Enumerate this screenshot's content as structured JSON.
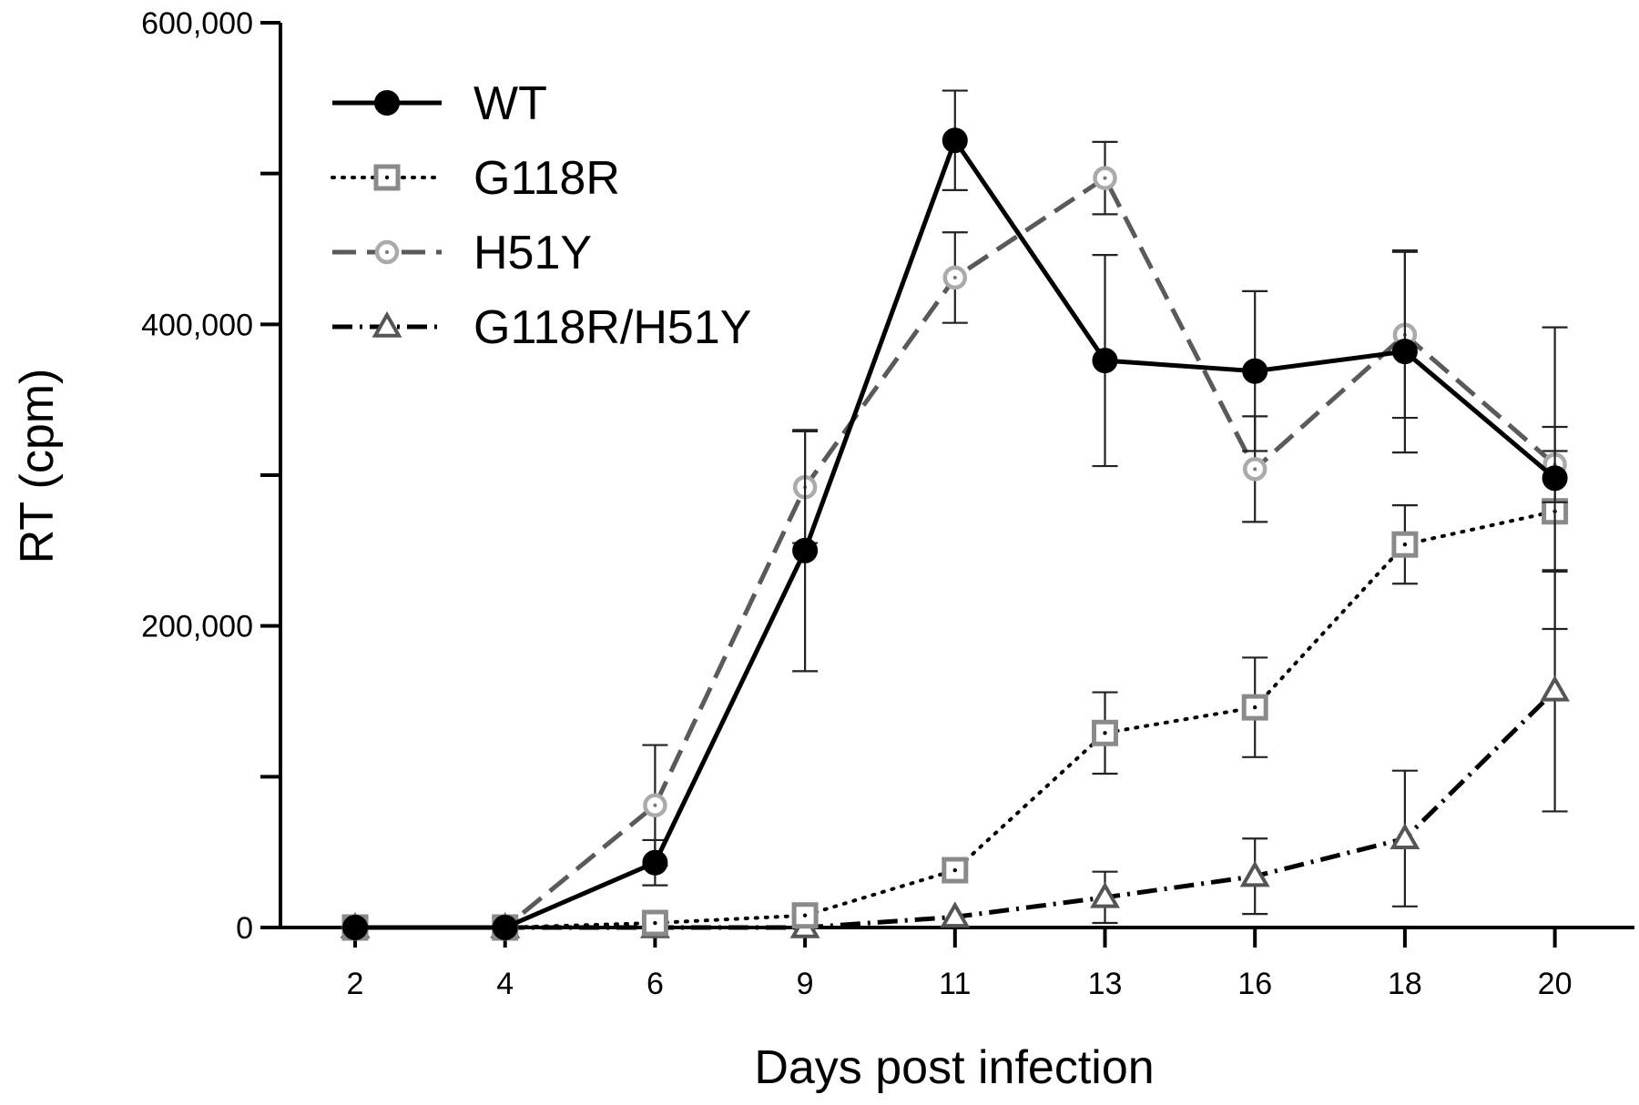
{
  "chart_data": {
    "type": "line",
    "xlabel": "Days post infection",
    "ylabel": "RT (cpm)",
    "categories": [
      "2",
      "4",
      "6",
      "9",
      "11",
      "13",
      "16",
      "18",
      "20"
    ],
    "ylim": [
      0,
      600000
    ],
    "yticks": [
      0,
      200000,
      400000,
      600000
    ],
    "ytick_labels": [
      "0",
      "200,000",
      "400,000",
      "600,000"
    ],
    "ytick_minor": [
      100000,
      300000,
      500000
    ],
    "grid": false,
    "legend_position": "top-left",
    "series": [
      {
        "name": "WT",
        "marker": "filled-circle",
        "line_style": "solid",
        "color": "#000000",
        "values": [
          0,
          0,
          43000,
          250000,
          522000,
          376000,
          369000,
          382000,
          298000
        ],
        "error": [
          0,
          0,
          15000,
          80000,
          33000,
          70000,
          53000,
          67000,
          100000
        ]
      },
      {
        "name": "G118R",
        "marker": "open-square-dot",
        "line_style": "dotted",
        "color": "#8a8a8a",
        "values": [
          0,
          0,
          3000,
          8000,
          38000,
          129000,
          146000,
          254000,
          276000
        ],
        "error": [
          0,
          0,
          0,
          0,
          0,
          27000,
          33000,
          26000,
          40000
        ]
      },
      {
        "name": "H51Y",
        "marker": "open-circle-dot",
        "line_style": "dashed",
        "color": "#5a5a5a",
        "values": [
          0,
          0,
          81000,
          292000,
          431000,
          497000,
          304000,
          393000,
          307000
        ],
        "error": [
          0,
          0,
          40000,
          37000,
          30000,
          24000,
          35000,
          55000,
          25000
        ]
      },
      {
        "name": "G118R/H51Y",
        "marker": "open-triangle",
        "line_style": "dash-dot",
        "color": "#555555",
        "values": [
          0,
          0,
          0,
          0,
          7000,
          20000,
          34000,
          59000,
          157000
        ],
        "error": [
          0,
          0,
          0,
          0,
          0,
          17000,
          25000,
          45000,
          80000
        ]
      }
    ]
  }
}
